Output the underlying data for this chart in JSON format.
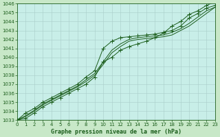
{
  "background_color": "#c8e8c8",
  "plot_bg_color": "#c8eee8",
  "grid_color": "#a8ccc8",
  "line_color": "#1a5c1a",
  "xlabel": "Graphe pression niveau de la mer (hPa)",
  "xlim": [
    0,
    23
  ],
  "ylim": [
    1033,
    1046
  ],
  "xticks": [
    0,
    1,
    2,
    3,
    4,
    5,
    6,
    7,
    8,
    9,
    10,
    11,
    12,
    13,
    14,
    15,
    16,
    17,
    18,
    19,
    20,
    21,
    22,
    23
  ],
  "yticks": [
    1033,
    1034,
    1035,
    1036,
    1037,
    1038,
    1039,
    1040,
    1041,
    1042,
    1043,
    1044,
    1045,
    1046
  ],
  "series": [
    {
      "y": [
        1033.0,
        1033.8,
        1034.3,
        1035.0,
        1035.5,
        1036.0,
        1036.5,
        1037.0,
        1037.8,
        1038.5,
        1041.0,
        1041.8,
        1042.2,
        1042.3,
        1042.4,
        1042.5,
        1042.6,
        1042.8,
        1043.0,
        1043.5,
        1044.4,
        1044.9,
        1045.5,
        1045.8
      ],
      "marker": true,
      "marker_style": "+"
    },
    {
      "y": [
        1033.0,
        1033.5,
        1034.1,
        1034.8,
        1035.3,
        1035.8,
        1036.3,
        1036.8,
        1037.5,
        1038.2,
        1039.5,
        1040.8,
        1041.5,
        1042.0,
        1042.2,
        1042.3,
        1042.4,
        1042.5,
        1042.8,
        1043.2,
        1043.8,
        1044.5,
        1045.2,
        1045.6
      ],
      "marker": false,
      "marker_style": null
    },
    {
      "y": [
        1033.0,
        1033.4,
        1034.0,
        1034.7,
        1035.2,
        1035.7,
        1036.2,
        1036.7,
        1037.3,
        1038.0,
        1039.2,
        1040.5,
        1041.2,
        1041.8,
        1042.0,
        1042.1,
        1042.2,
        1042.3,
        1042.5,
        1043.0,
        1043.5,
        1044.2,
        1044.9,
        1045.6
      ],
      "marker": false,
      "marker_style": null
    },
    {
      "y": [
        1033.0,
        1033.2,
        1033.8,
        1034.5,
        1035.0,
        1035.5,
        1036.0,
        1036.5,
        1037.0,
        1037.8,
        1039.5,
        1040.0,
        1040.8,
        1041.2,
        1041.5,
        1041.8,
        1042.2,
        1042.7,
        1043.5,
        1044.0,
        1044.8,
        1045.2,
        1045.8,
        1046.2
      ],
      "marker": true,
      "marker_style": "+"
    }
  ],
  "linewidth": 0.7,
  "marker_size": 4,
  "tick_fontsize": 5,
  "xlabel_fontsize": 6
}
